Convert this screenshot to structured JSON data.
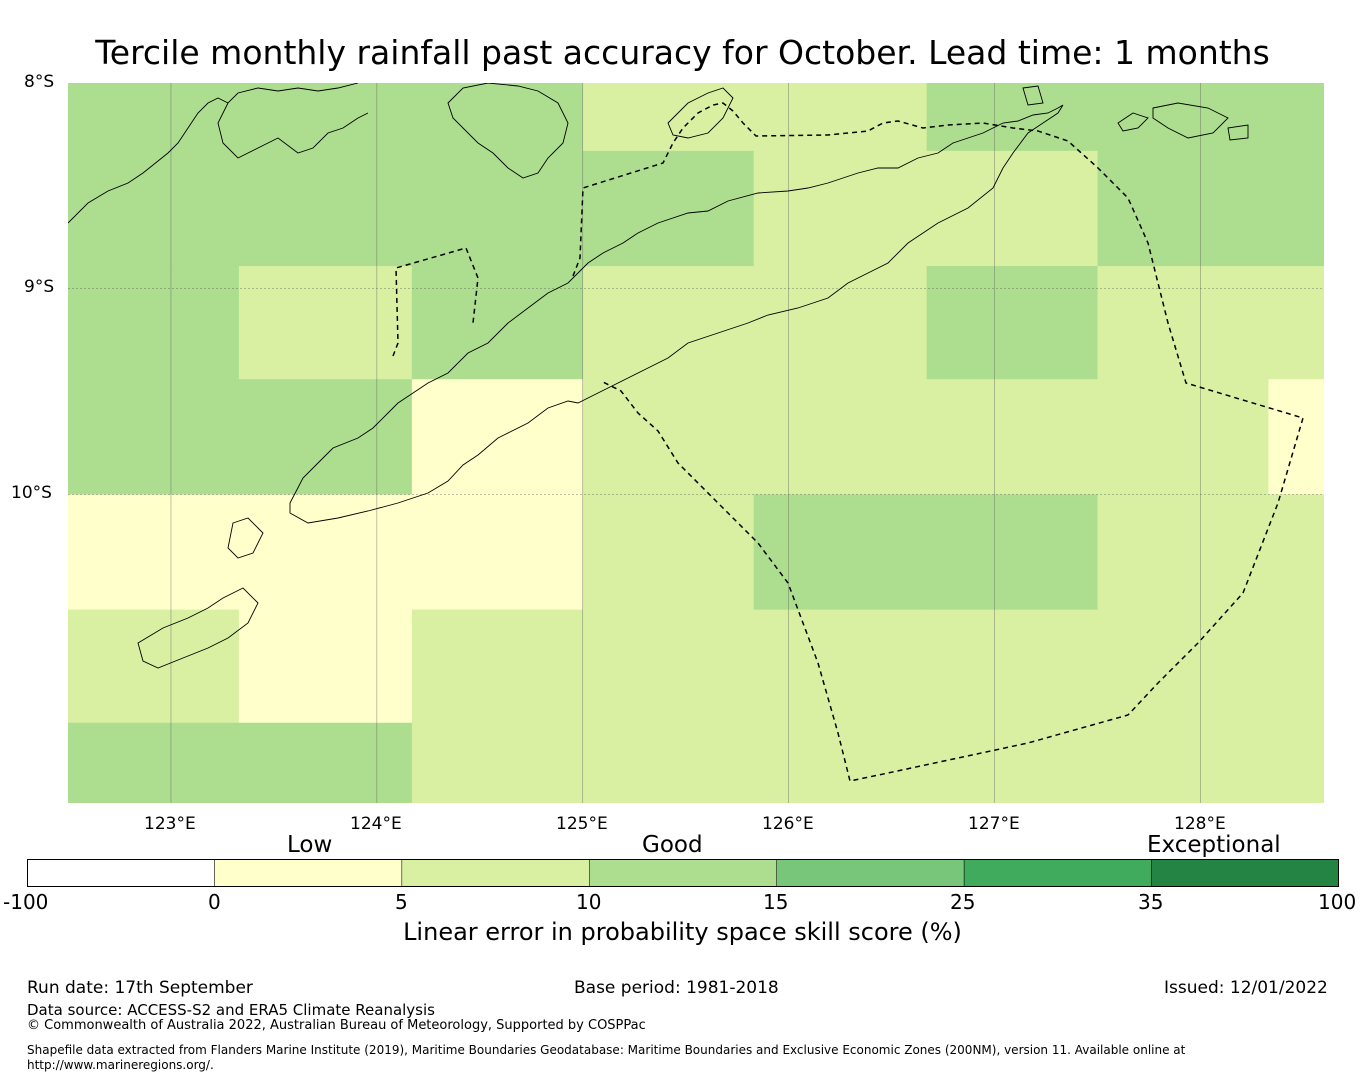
{
  "title": "Tercile monthly rainfall past accuracy for October. Lead time: 1 months",
  "map": {
    "lat_labels": [
      "8°S",
      "9°S",
      "10°S"
    ],
    "lon_labels": [
      "123°E",
      "124°E",
      "125°E",
      "126°E",
      "127°E",
      "128°E"
    ],
    "extent": {
      "lon_min": 122.5,
      "lon_max": 128.6,
      "lat_top": -8.0,
      "lat_bottom": -11.5
    },
    "grid_lons": [
      123,
      124,
      125,
      126,
      127,
      128
    ],
    "grid_lats": [
      -9,
      -10
    ],
    "cell_lon_edges": [
      122.5,
      123.33,
      124.17,
      125.0,
      125.83,
      126.67,
      127.5,
      128.33,
      128.6
    ],
    "cell_lat_edges": [
      -8.0,
      -8.33,
      -8.89,
      -9.44,
      -10.0,
      -10.56,
      -11.11,
      -11.5
    ],
    "cells": [
      [
        3,
        3,
        3,
        2,
        2,
        3,
        3,
        3
      ],
      [
        3,
        3,
        3,
        3,
        2,
        2,
        3,
        3
      ],
      [
        3,
        2,
        3,
        2,
        2,
        3,
        2,
        2
      ],
      [
        3,
        3,
        1,
        2,
        2,
        2,
        2,
        1
      ],
      [
        1,
        1,
        1,
        2,
        3,
        3,
        2,
        2
      ],
      [
        2,
        1,
        2,
        2,
        2,
        2,
        2,
        2
      ],
      [
        3,
        3,
        2,
        2,
        2,
        2,
        2,
        2
      ]
    ]
  },
  "colorbar": {
    "category_labels": [
      "Low",
      "Good",
      "Exceptional"
    ],
    "tick_labels": [
      "-100",
      "0",
      "5",
      "10",
      "15",
      "25",
      "35",
      "100"
    ],
    "colors": [
      "#ffffff",
      "#ffffcc",
      "#d9f0a3",
      "#addd8e",
      "#78c679",
      "#41ab5d",
      "#238443"
    ],
    "label": "Linear error in probability space skill score (%)"
  },
  "footer": {
    "run_date": "Run date: 17th September",
    "base_period": "Base period: 1981-2018",
    "issued": "Issued: 12/01/2022",
    "data_source": "Data source: ACCESS-S2 and ERA5 Climate Reanalysis",
    "copyright": "© Commonwealth of Australia 2022, Australian Bureau of Meteorology, Supported by COSPPac",
    "shapefile_line1": "Shapefile data extracted from Flanders Marine Institute (2019), Maritime Boundaries Geodatabase: Maritime Boundaries and Exclusive Economic Zones (200NM), version 11. Available online at",
    "shapefile_line2": "http://www.marineregions.org/."
  }
}
